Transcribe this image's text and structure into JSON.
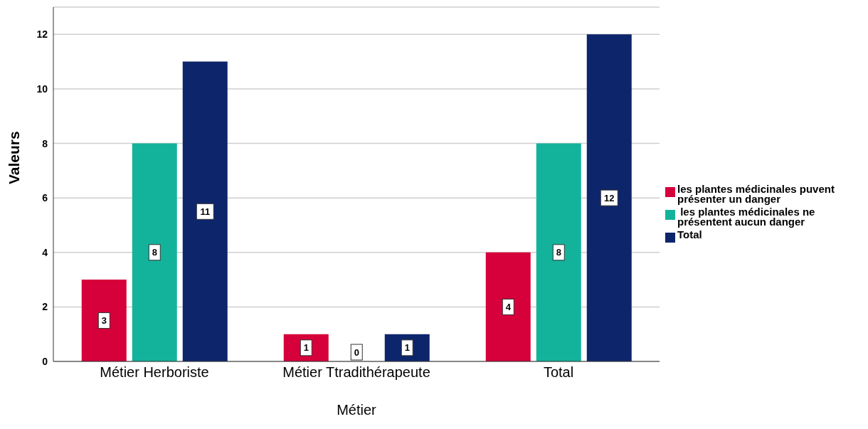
{
  "chart_data": {
    "type": "bar",
    "categories": [
      "Métier Herboriste",
      "Métier Ttradithérapeute",
      "Total"
    ],
    "series": [
      {
        "name": "les plantes médicinales puvent présenter un danger",
        "color": "#d6003b",
        "values": [
          3,
          1,
          4
        ]
      },
      {
        "name": " les plantes médicinales ne présentent aucun danger",
        "color": "#13b39b",
        "values": [
          8,
          0,
          8
        ]
      },
      {
        "name": "Total",
        "color": "#0d256b",
        "values": [
          11,
          1,
          12
        ]
      }
    ],
    "xlabel": "Métier",
    "ylabel": "Valeurs",
    "ylim": [
      0,
      13
    ],
    "yticks": [
      0,
      2,
      4,
      6,
      8,
      10,
      12
    ],
    "grid": "y",
    "legend": "right",
    "data_labels": true
  }
}
